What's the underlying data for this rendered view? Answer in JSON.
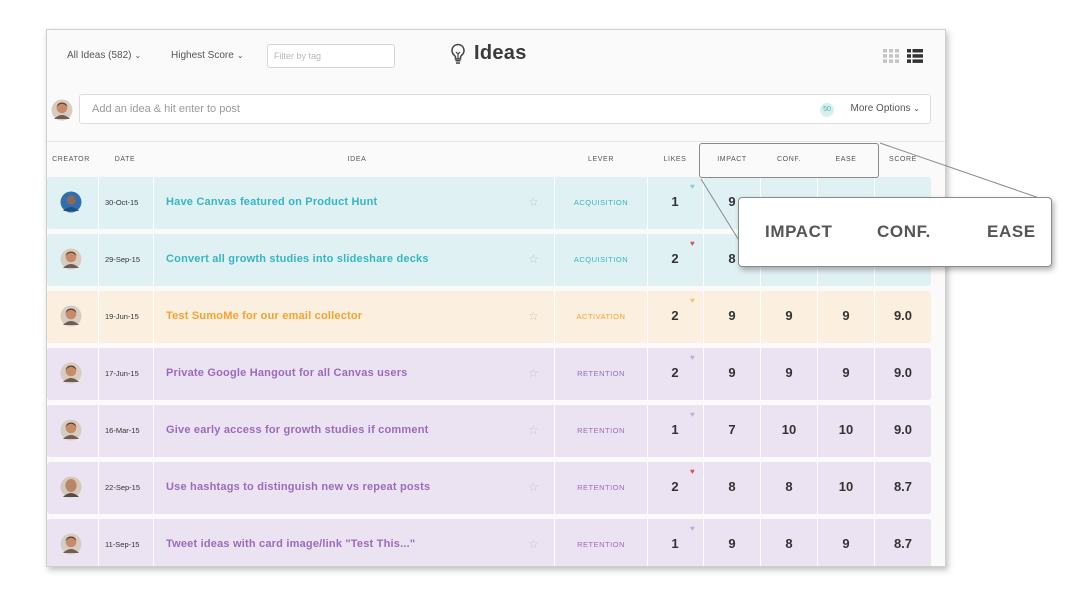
{
  "toolbar": {
    "filter_all": "All Ideas (582)",
    "sort": "Highest Score",
    "tag_filter_placeholder": "Filter by tag",
    "title": "Ideas"
  },
  "post_bar": {
    "placeholder": "Add an idea & hit enter to post",
    "count": "50",
    "more_options": "More Options"
  },
  "columns": [
    "CREATOR",
    "DATE",
    "IDEA",
    "LEVER",
    "LIKES",
    "IMPACT",
    "CONF.",
    "EASE",
    "SCORE"
  ],
  "rows": [
    {
      "date": "30-Oct-15",
      "idea": "Have Canvas featured on Product Hunt",
      "lever": "ACQUISITION",
      "likes": "1",
      "impact": "9",
      "conf": "",
      "ease": "",
      "score": "",
      "theme": "teal",
      "heart": "teal",
      "avatar": "blue"
    },
    {
      "date": "29-Sep-15",
      "idea": "Convert all growth studies into slideshare decks",
      "lever": "ACQUISITION",
      "likes": "2",
      "impact": "8",
      "conf": "",
      "ease": "",
      "score": "",
      "theme": "teal",
      "heart": "red",
      "avatar": "brown"
    },
    {
      "date": "19-Jun-15",
      "idea": "Test SumoMe for our email collector",
      "lever": "ACTIVATION",
      "likes": "2",
      "impact": "9",
      "conf": "9",
      "ease": "9",
      "score": "9.0",
      "theme": "orange",
      "heart": "orange",
      "avatar": "brown"
    },
    {
      "date": "17-Jun-15",
      "idea": "Private Google Hangout for all Canvas users",
      "lever": "RETENTION",
      "likes": "2",
      "impact": "9",
      "conf": "9",
      "ease": "9",
      "score": "9.0",
      "theme": "purple",
      "heart": "purple",
      "avatar": "brown"
    },
    {
      "date": "16-Mar-15",
      "idea": "Give early access for growth studies if comment",
      "lever": "RETENTION",
      "likes": "1",
      "impact": "7",
      "conf": "10",
      "ease": "10",
      "score": "9.0",
      "theme": "purple",
      "heart": "purple",
      "avatar": "brown"
    },
    {
      "date": "22-Sep-15",
      "idea": "Use hashtags to distinguish new vs repeat posts",
      "lever": "RETENTION",
      "likes": "2",
      "impact": "8",
      "conf": "8",
      "ease": "10",
      "score": "8.7",
      "theme": "purple",
      "heart": "red",
      "avatar": "bald"
    },
    {
      "date": "11-Sep-15",
      "idea": "Tweet ideas with card image/link \"Test This...\"",
      "lever": "RETENTION",
      "likes": "1",
      "impact": "9",
      "conf": "8",
      "ease": "9",
      "score": "8.7",
      "theme": "purple",
      "heart": "purple",
      "avatar": "brown"
    }
  ],
  "zoom_callout": {
    "labels": [
      "IMPACT",
      "CONF.",
      "EASE"
    ]
  },
  "colors": {
    "teal_bg": "#e0f1f3",
    "teal_text": "#36b5c2",
    "orange_bg": "#fbefe0",
    "orange_text": "#f4a22e",
    "purple_bg": "#ebe3f1",
    "purple_text": "#9a6bbd",
    "heart_red": "#d9534f",
    "heart_teal": "#7fd0da",
    "heart_orange": "#f6c064",
    "heart_purple": "#c4a9dc"
  },
  "icons": [
    "lightbulb-icon",
    "grid-view-icon",
    "list-view-icon",
    "chevron-down-icon",
    "star-icon",
    "heart-icon"
  ]
}
